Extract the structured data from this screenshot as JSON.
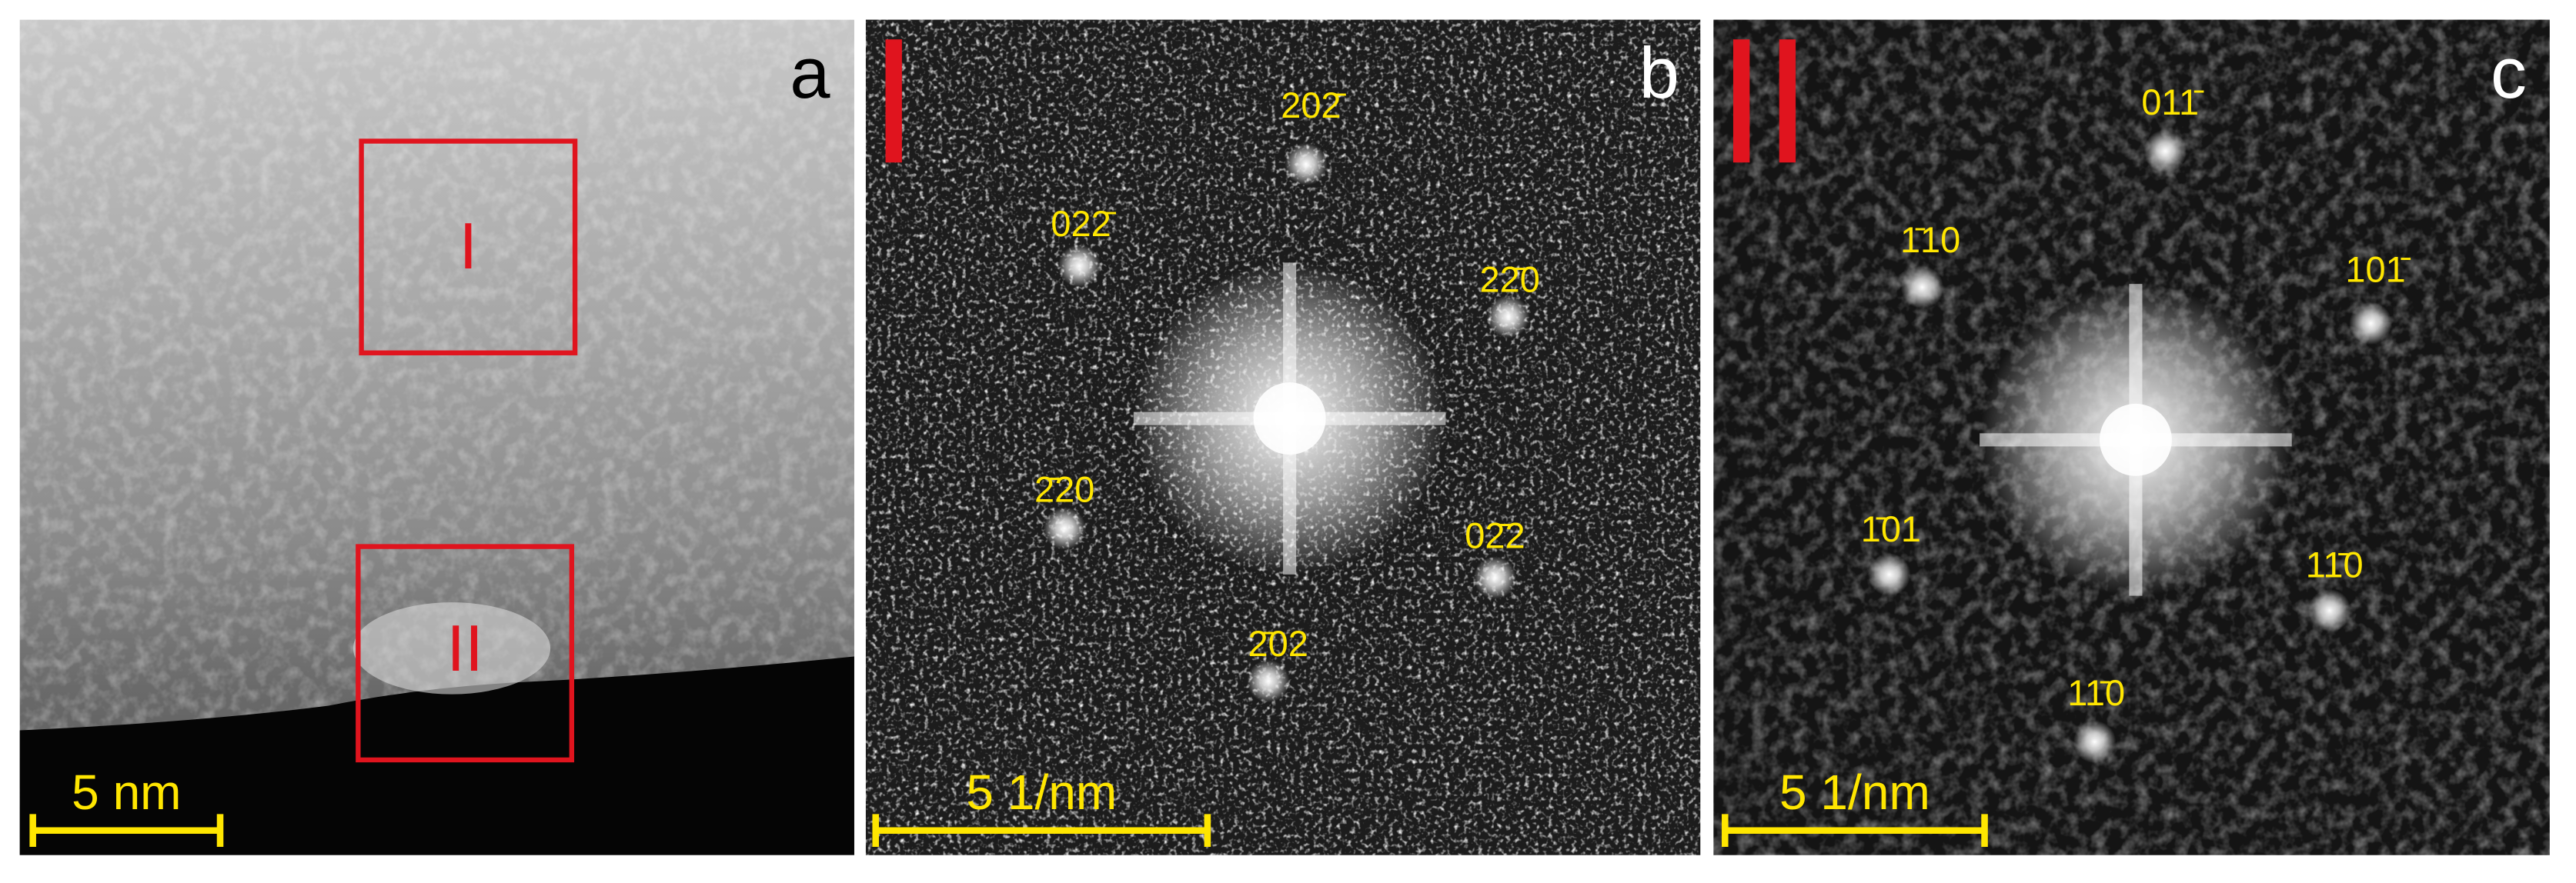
{
  "panels": [
    {
      "letter": "a",
      "scale_bar": "5 nm",
      "boxes": [
        "I",
        "II"
      ]
    },
    {
      "letter": "b",
      "marker": "I",
      "scale_bar": "5 1/nm",
      "spots": [
        "202̄",
        "022̄",
        "22̄0",
        "2̄20",
        "02̄2",
        "2̄02"
      ]
    },
    {
      "letter": "c",
      "marker": "II",
      "scale_bar": "5 1/nm",
      "spots": [
        "011̄",
        "1̄10",
        "101̄",
        "1̄01",
        "11̄0",
        "11̄0"
      ]
    }
  ]
}
